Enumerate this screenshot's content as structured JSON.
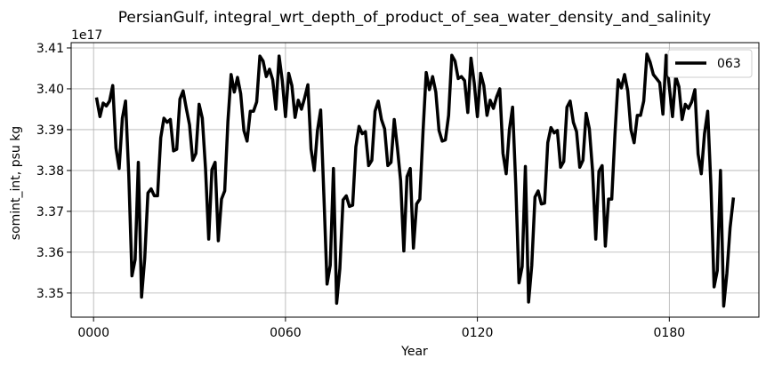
{
  "chart_data": {
    "type": "line",
    "title": "PersianGulf, integral_wrt_depth_of_product_of_sea_water_density_and_salinity",
    "xlabel": "Year",
    "ylabel": "somint_int, psu kg",
    "y_offset_label": "1e17",
    "y_scale_factor": 1e+17,
    "xlim": [
      -7,
      208
    ],
    "ylim": [
      3.3441,
      3.4113
    ],
    "x_ticks": [
      0,
      60,
      120,
      180
    ],
    "x_tick_labels": [
      "0000",
      "0060",
      "0120",
      "0180"
    ],
    "y_ticks": [
      3.35,
      3.36,
      3.37,
      3.38,
      3.39,
      3.4,
      3.41
    ],
    "y_tick_labels": [
      "3.35",
      "3.36",
      "3.37",
      "3.38",
      "3.39",
      "3.40",
      "3.41"
    ],
    "grid": true,
    "legend_position": "top-right",
    "series": [
      {
        "name": "063",
        "color": "#000000",
        "x": [
          1,
          2,
          3,
          4,
          5,
          6,
          7,
          8,
          9,
          10,
          11,
          12,
          13,
          14,
          15,
          16,
          17,
          18,
          19,
          20,
          21,
          22,
          23,
          24,
          25,
          26,
          27,
          28,
          29,
          30,
          31,
          32,
          33,
          34,
          35,
          36,
          37,
          38,
          39,
          40,
          41,
          42,
          43,
          44,
          45,
          46,
          47,
          48,
          49,
          50,
          51,
          52,
          53,
          54,
          55,
          56,
          57,
          58,
          59,
          60,
          61,
          62,
          63,
          64,
          65,
          66,
          67,
          68,
          69,
          70,
          71,
          72,
          73,
          74,
          75,
          76,
          77,
          78,
          79,
          80,
          81,
          82,
          83,
          84,
          85,
          86,
          87,
          88,
          89,
          90,
          91,
          92,
          93,
          94,
          95,
          96,
          97,
          98,
          99,
          100,
          101,
          102,
          103,
          104,
          105,
          106,
          107,
          108,
          109,
          110,
          111,
          112,
          113,
          114,
          115,
          116,
          117,
          118,
          119,
          120,
          121,
          122,
          123,
          124,
          125,
          126,
          127,
          128,
          129,
          130,
          131,
          132,
          133,
          134,
          135,
          136,
          137,
          138,
          139,
          140,
          141,
          142,
          143,
          144,
          145,
          146,
          147,
          148,
          149,
          150,
          151,
          152,
          153,
          154,
          155,
          156,
          157,
          158,
          159,
          160,
          161,
          162,
          163,
          164,
          165,
          166,
          167,
          168,
          169,
          170,
          171,
          172,
          173,
          174,
          175,
          176,
          177,
          178,
          179,
          180,
          181,
          182,
          183,
          184,
          185,
          186,
          187,
          188,
          189,
          190,
          191,
          192,
          193,
          194,
          195,
          196,
          197,
          198,
          199,
          200
        ],
        "values": [
          3.3975,
          3.3932,
          3.3965,
          3.3958,
          3.397,
          3.4008,
          3.3855,
          3.3805,
          3.3928,
          3.397,
          3.379,
          3.3542,
          3.3582,
          3.382,
          3.349,
          3.3585,
          3.3745,
          3.3755,
          3.3738,
          3.3738,
          3.388,
          3.3928,
          3.3918,
          3.3925,
          3.3848,
          3.3852,
          3.3975,
          3.3995,
          3.3952,
          3.3912,
          3.3825,
          3.3842,
          3.3962,
          3.3928,
          3.3805,
          3.3632,
          3.3802,
          3.382,
          3.3628,
          3.373,
          3.375,
          3.392,
          3.4035,
          3.3992,
          3.4028,
          3.3988,
          3.3898,
          3.3872,
          3.3945,
          3.3945,
          3.3968,
          3.408,
          3.4068,
          3.403,
          3.4048,
          3.4022,
          3.395,
          3.408,
          3.402,
          3.3932,
          3.4038,
          3.4008,
          3.393,
          3.3972,
          3.395,
          3.3978,
          3.401,
          3.3852,
          3.38,
          3.3898,
          3.3948,
          3.374,
          3.3522,
          3.3568,
          3.3805,
          3.3475,
          3.356,
          3.3728,
          3.3738,
          3.3712,
          3.3715,
          3.3858,
          3.3908,
          3.389,
          3.3895,
          3.3812,
          3.3825,
          3.3945,
          3.397,
          3.3925,
          3.3902,
          3.3812,
          3.382,
          3.3925,
          3.3855,
          3.3775,
          3.3603,
          3.3785,
          3.3805,
          3.361,
          3.3718,
          3.373,
          3.3895,
          3.404,
          3.3998,
          3.403,
          3.3992,
          3.3898,
          3.3872,
          3.3875,
          3.3935,
          3.4082,
          3.4068,
          3.4025,
          3.403,
          3.402,
          3.3942,
          3.4075,
          3.4015,
          3.3932,
          3.4038,
          3.4008,
          3.3935,
          3.3972,
          3.3952,
          3.398,
          3.4,
          3.3842,
          3.3792,
          3.39,
          3.3955,
          3.3765,
          3.3525,
          3.3565,
          3.381,
          3.3478,
          3.3568,
          3.3735,
          3.375,
          3.3718,
          3.372,
          3.3868,
          3.3905,
          3.3892,
          3.3898,
          3.3808,
          3.3822,
          3.3955,
          3.397,
          3.3918,
          3.3895,
          3.3808,
          3.3825,
          3.394,
          3.3902,
          3.38,
          3.3632,
          3.3798,
          3.3812,
          3.3615,
          3.373,
          3.373,
          3.3888,
          3.4022,
          3.4002,
          3.4035,
          3.3995,
          3.39,
          3.3868,
          3.3935,
          3.3935,
          3.397,
          3.4085,
          3.4065,
          3.4035,
          3.4025,
          3.4015,
          3.3938,
          3.4082,
          3.4005,
          3.3932,
          3.403,
          3.4005,
          3.3925,
          3.3962,
          3.3952,
          3.3968,
          3.3998,
          3.384,
          3.3792,
          3.389,
          3.3945,
          3.3765,
          3.3515,
          3.3555,
          3.38,
          3.3468,
          3.3548,
          3.366,
          3.373
        ]
      }
    ]
  }
}
